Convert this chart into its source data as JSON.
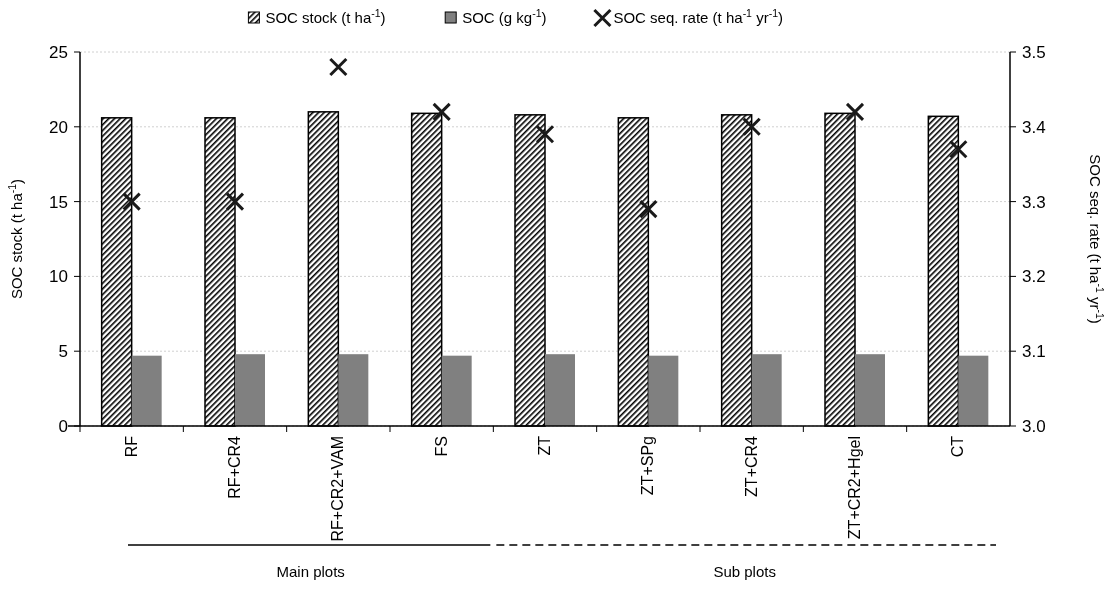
{
  "chart_data": {
    "type": "bar",
    "categories": [
      "RF",
      "RF+CR4",
      "RF+CR2+VAM",
      "FS",
      "ZT",
      "ZT+SPg",
      "ZT+CR4",
      "ZT+CR2+Hgel",
      "CT"
    ],
    "series": [
      {
        "name": "SOC stock (t ha$^{-1}$)",
        "color": "#000000",
        "values": [
          20.6,
          20.6,
          21.0,
          20.9,
          20.8,
          20.6,
          20.8,
          20.9,
          20.7
        ]
      },
      {
        "name": "SOC (g kg$^{-1}$)",
        "color": "#808080",
        "values": [
          4.7,
          4.8,
          4.8,
          4.7,
          4.8,
          4.7,
          4.8,
          4.8,
          4.7
        ]
      },
      {
        "name": "SOC seq. rate (t ha$^{-1}$ yr$^{-1}$)",
        "type": "scatter",
        "axis": "y2",
        "marker": "cross",
        "color": "#1a1a1a",
        "values": [
          3.3,
          3.3,
          3.48,
          3.42,
          3.39,
          3.29,
          3.4,
          3.42,
          3.37
        ]
      }
    ],
    "ylabel": "SOC stock (t ha$^{-1}$)",
    "y2label": "SOC seq. rate (t ha$^{-1}$ yr$^{-1}$)",
    "ylim": [
      0,
      25
    ],
    "yticks": [
      0,
      5,
      10,
      15,
      20,
      25
    ],
    "y2lim": [
      3.0,
      3.5
    ],
    "y2ticks": [
      {
        "value": 3.0,
        "label": "3.0"
      },
      {
        "value": 3.1,
        "label": "3.1"
      },
      {
        "value": 3.2,
        "label": "3.2"
      },
      {
        "value": 3.3,
        "label": "3.3"
      },
      {
        "value": 3.4,
        "label": "3.4"
      },
      {
        "value": 3.5,
        "label": "3.5"
      }
    ],
    "grid": "y",
    "legend": "top",
    "annotations": [
      "Main plots",
      "Sub plots"
    ]
  }
}
